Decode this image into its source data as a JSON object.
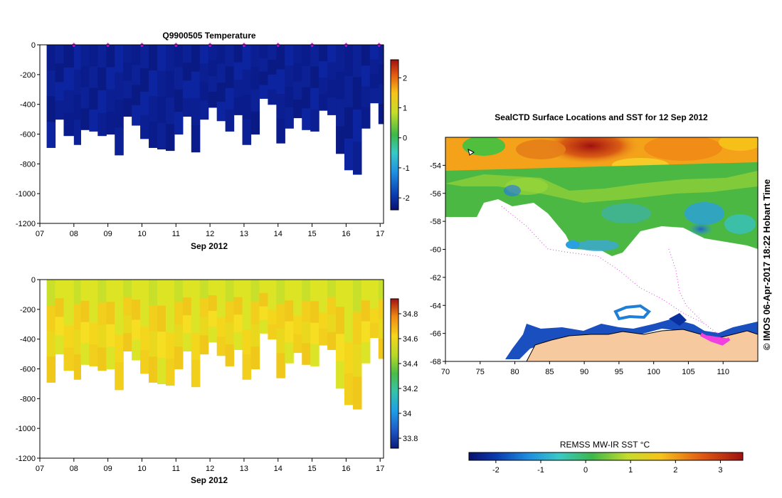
{
  "chart_data": [
    {
      "type": "heatmap",
      "title": "Q9900505  Temperature",
      "xlabel": "Sep 2012",
      "ylabel": "",
      "x_tick_labels": [
        "07",
        "08",
        "09",
        "10",
        "11",
        "12",
        "13",
        "14",
        "15",
        "16",
        "17"
      ],
      "y_ticks": [
        0,
        -200,
        -400,
        -600,
        -800,
        -1000,
        -1200
      ],
      "y_tick_labels": [
        "0",
        "-200",
        "-400",
        "-600",
        "-800",
        "-1000",
        "-1200"
      ],
      "xlim": [
        7,
        17.1
      ],
      "ylim": [
        -1200,
        0
      ],
      "profile_times": [
        7.2,
        7.45,
        7.7,
        8.0,
        8.2,
        8.45,
        8.7,
        8.95,
        9.2,
        9.45,
        9.7,
        9.95,
        10.2,
        10.45,
        10.7,
        10.95,
        11.2,
        11.45,
        11.7,
        11.95,
        12.2,
        12.45,
        12.7,
        12.95,
        13.2,
        13.45,
        13.7,
        13.95,
        14.2,
        14.45,
        14.7,
        14.95,
        15.2,
        15.45,
        15.7,
        15.95,
        16.2,
        16.45,
        16.7,
        16.95
      ],
      "profile_max_depths": [
        -690,
        -500,
        -610,
        -670,
        -570,
        -580,
        -610,
        -600,
        -740,
        -480,
        -540,
        -630,
        -690,
        -700,
        -710,
        -600,
        -480,
        -720,
        -500,
        -420,
        -510,
        -580,
        -470,
        -670,
        -600,
        -360,
        -400,
        -660,
        -560,
        -490,
        -570,
        -580,
        -440,
        -470,
        -730,
        -840,
        -870,
        -560,
        -390,
        -530
      ],
      "marker_times": [
        8.0,
        9.0,
        10.0,
        11.0,
        12.0,
        13.0,
        14.0,
        15.0,
        16.0,
        16.97
      ],
      "colorbar": {
        "ticks": [
          2,
          1,
          0,
          -1,
          -2
        ],
        "tick_labels": [
          "2",
          "1",
          "0",
          "-1",
          "-2"
        ],
        "range": [
          -2.4,
          2.6
        ]
      }
    },
    {
      "type": "heatmap",
      "title": "",
      "xlabel": "Sep 2012",
      "ylabel": "",
      "x_tick_labels": [
        "07",
        "08",
        "09",
        "10",
        "11",
        "12",
        "13",
        "14",
        "15",
        "16",
        "17"
      ],
      "y_ticks": [
        0,
        -200,
        -400,
        -600,
        -800,
        -1000,
        -1200
      ],
      "y_tick_labels": [
        "0",
        "-200",
        "-400",
        "-600",
        "-800",
        "-1000",
        "-1200"
      ],
      "xlim": [
        7,
        17.1
      ],
      "ylim": [
        -1200,
        0
      ],
      "colorbar": {
        "ticks": [
          34.8,
          34.6,
          34.4,
          34.2,
          34.0,
          33.8
        ],
        "tick_labels": [
          "34.8",
          "34.6",
          "34.4",
          "34.2",
          "34",
          "33.8"
        ],
        "range": [
          33.72,
          34.92
        ]
      }
    },
    {
      "type": "heatmap",
      "title": "SealCTD Surface Locations and SST for 12 Sep 2012",
      "xlabel": "",
      "ylabel": "",
      "x_ticks": [
        70,
        75,
        80,
        85,
        90,
        95,
        100,
        105,
        110
      ],
      "x_tick_labels": [
        "70",
        "75",
        "80",
        "85",
        "90",
        "95",
        "100",
        "105",
        "110"
      ],
      "y_ticks": [
        -54,
        -56,
        -58,
        -60,
        -62,
        -64,
        -66,
        -68
      ],
      "y_tick_labels": [
        "-54",
        "-56",
        "-58",
        "-60",
        "-62",
        "-64",
        "-66",
        "-68"
      ],
      "xlim": [
        70,
        115
      ],
      "ylim": [
        -68,
        -52
      ],
      "colorbar": {
        "label": "REMSS MW-IR SST °C",
        "ticks": [
          -2,
          -1,
          0,
          1,
          2,
          3
        ],
        "tick_labels": [
          "-2",
          "-1",
          "0",
          "1",
          "2",
          "3"
        ],
        "range": [
          -2.6,
          3.5
        ]
      },
      "credit": "© IMOS 06-Apr-2017 18:22 Hobart Time"
    }
  ]
}
